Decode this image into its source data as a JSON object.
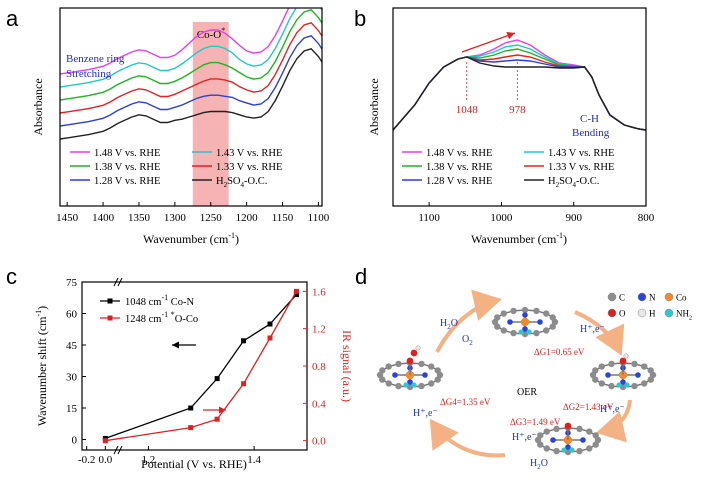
{
  "panel_labels": {
    "a": "a",
    "b": "b",
    "c": "c",
    "d": "d"
  },
  "chart_data": [
    {
      "type": "line",
      "panel": "a",
      "xlabel": "Wavenumber (cm",
      "xlabel_sup": "-1",
      "xlabel_tail": ")",
      "ylabel": "Absorbance",
      "xlim": [
        1460,
        1095
      ],
      "xticks": [
        "1450",
        "1400",
        "1350",
        "1300",
        "1250",
        "1200",
        "1150",
        "1100"
      ],
      "highlight": {
        "from": 1275,
        "to": 1225,
        "label": "Co-O",
        "label_sup": "*",
        "color": "#f4a6a6"
      },
      "annotation": {
        "line1": "Benzene ring",
        "line2": "Stretching",
        "color": "#1f2fbf"
      },
      "legend": [
        {
          "name": "1.48 V vs. RHE",
          "color": "#e83fe8"
        },
        {
          "name": "1.43 V vs. RHE",
          "color": "#21c8c8"
        },
        {
          "name": "1.38 V vs. RHE",
          "color": "#1fb51f"
        },
        {
          "name": "1.33 V vs. RHE",
          "color": "#e82020"
        },
        {
          "name": "1.28 V vs. RHE",
          "color": "#2e3fd6"
        },
        {
          "name": "H2SO4-O.C.",
          "color": "#222222"
        }
      ],
      "legend_h2so4": {
        "a": "H",
        "sub1": "2",
        "b": "SO",
        "sub2": "4",
        "c": "-O.C."
      },
      "series": [
        {
          "name": "1.48 V vs. RHE",
          "offset": 5,
          "x": [
            1460,
            1450,
            1440,
            1420,
            1400,
            1390,
            1380,
            1370,
            1360,
            1350,
            1340,
            1330,
            1320,
            1310,
            1300,
            1290,
            1280,
            1270,
            1260,
            1250,
            1240,
            1230,
            1220,
            1210,
            1200,
            1190,
            1180,
            1170,
            1160,
            1150,
            1140,
            1130,
            1120,
            1110,
            1100,
            1095
          ],
          "y": [
            0.1,
            0.11,
            0.12,
            0.14,
            0.17,
            0.2,
            0.24,
            0.27,
            0.3,
            0.32,
            0.31,
            0.28,
            0.25,
            0.25,
            0.27,
            0.32,
            0.38,
            0.44,
            0.48,
            0.5,
            0.5,
            0.47,
            0.42,
            0.36,
            0.31,
            0.29,
            0.3,
            0.35,
            0.45,
            0.58,
            0.72,
            0.83,
            0.9,
            0.92,
            0.85,
            0.8
          ]
        },
        {
          "name": "1.43 V vs. RHE",
          "offset": 4,
          "x": [
            1460,
            1450,
            1440,
            1420,
            1400,
            1390,
            1380,
            1370,
            1360,
            1350,
            1340,
            1330,
            1320,
            1310,
            1300,
            1290,
            1280,
            1270,
            1260,
            1250,
            1240,
            1230,
            1220,
            1210,
            1200,
            1190,
            1180,
            1170,
            1160,
            1150,
            1140,
            1130,
            1120,
            1110,
            1100,
            1095
          ],
          "y": [
            0.1,
            0.11,
            0.12,
            0.14,
            0.17,
            0.2,
            0.24,
            0.27,
            0.3,
            0.32,
            0.31,
            0.28,
            0.25,
            0.25,
            0.27,
            0.31,
            0.36,
            0.41,
            0.45,
            0.47,
            0.47,
            0.45,
            0.41,
            0.35,
            0.31,
            0.29,
            0.3,
            0.35,
            0.45,
            0.58,
            0.72,
            0.83,
            0.9,
            0.92,
            0.85,
            0.8
          ]
        },
        {
          "name": "1.38 V vs. RHE",
          "offset": 3,
          "x": [
            1460,
            1450,
            1440,
            1420,
            1400,
            1390,
            1380,
            1370,
            1360,
            1350,
            1340,
            1330,
            1320,
            1310,
            1300,
            1290,
            1280,
            1270,
            1260,
            1250,
            1240,
            1230,
            1220,
            1210,
            1200,
            1190,
            1180,
            1170,
            1160,
            1150,
            1140,
            1130,
            1120,
            1110,
            1100,
            1095
          ],
          "y": [
            0.1,
            0.11,
            0.12,
            0.14,
            0.17,
            0.2,
            0.24,
            0.27,
            0.3,
            0.32,
            0.31,
            0.28,
            0.25,
            0.25,
            0.27,
            0.3,
            0.34,
            0.38,
            0.42,
            0.44,
            0.44,
            0.42,
            0.39,
            0.35,
            0.31,
            0.29,
            0.3,
            0.35,
            0.45,
            0.58,
            0.72,
            0.83,
            0.9,
            0.92,
            0.85,
            0.8
          ]
        },
        {
          "name": "1.33 V vs. RHE",
          "offset": 2,
          "x": [
            1460,
            1450,
            1440,
            1420,
            1400,
            1390,
            1380,
            1370,
            1360,
            1350,
            1340,
            1330,
            1320,
            1310,
            1300,
            1290,
            1280,
            1270,
            1260,
            1250,
            1240,
            1230,
            1220,
            1210,
            1200,
            1190,
            1180,
            1170,
            1160,
            1150,
            1140,
            1130,
            1120,
            1110,
            1100,
            1095
          ],
          "y": [
            0.1,
            0.11,
            0.12,
            0.14,
            0.17,
            0.2,
            0.24,
            0.27,
            0.3,
            0.32,
            0.31,
            0.28,
            0.25,
            0.25,
            0.27,
            0.3,
            0.33,
            0.36,
            0.39,
            0.41,
            0.41,
            0.4,
            0.38,
            0.34,
            0.31,
            0.29,
            0.3,
            0.35,
            0.45,
            0.58,
            0.72,
            0.83,
            0.9,
            0.92,
            0.85,
            0.8
          ]
        },
        {
          "name": "1.28 V vs. RHE",
          "offset": 1,
          "x": [
            1460,
            1450,
            1440,
            1420,
            1400,
            1390,
            1380,
            1370,
            1360,
            1350,
            1340,
            1330,
            1320,
            1310,
            1300,
            1290,
            1280,
            1270,
            1260,
            1250,
            1240,
            1230,
            1220,
            1210,
            1200,
            1190,
            1180,
            1170,
            1160,
            1150,
            1140,
            1130,
            1120,
            1110,
            1100,
            1095
          ],
          "y": [
            0.1,
            0.11,
            0.12,
            0.14,
            0.17,
            0.2,
            0.24,
            0.27,
            0.3,
            0.32,
            0.31,
            0.28,
            0.25,
            0.25,
            0.27,
            0.29,
            0.32,
            0.35,
            0.37,
            0.38,
            0.38,
            0.37,
            0.36,
            0.33,
            0.31,
            0.29,
            0.3,
            0.35,
            0.45,
            0.58,
            0.72,
            0.83,
            0.9,
            0.92,
            0.85,
            0.8
          ]
        },
        {
          "name": "H2SO4-O.C.",
          "offset": 0,
          "x": [
            1460,
            1450,
            1440,
            1420,
            1400,
            1390,
            1380,
            1370,
            1360,
            1350,
            1340,
            1330,
            1320,
            1310,
            1300,
            1290,
            1280,
            1270,
            1260,
            1250,
            1240,
            1230,
            1220,
            1210,
            1200,
            1190,
            1180,
            1170,
            1160,
            1150,
            1140,
            1130,
            1120,
            1110,
            1100,
            1095
          ],
          "y": [
            0.1,
            0.11,
            0.12,
            0.14,
            0.17,
            0.2,
            0.24,
            0.27,
            0.3,
            0.32,
            0.31,
            0.28,
            0.25,
            0.25,
            0.27,
            0.28,
            0.3,
            0.32,
            0.34,
            0.35,
            0.35,
            0.35,
            0.34,
            0.32,
            0.3,
            0.29,
            0.3,
            0.35,
            0.45,
            0.58,
            0.72,
            0.83,
            0.9,
            0.92,
            0.85,
            0.8
          ]
        }
      ]
    },
    {
      "type": "line",
      "panel": "b",
      "xlabel": "Wavenumber (cm",
      "xlabel_sup": "-1",
      "xlabel_tail": ")",
      "ylabel": "Absorbance",
      "xlim": [
        1150,
        800
      ],
      "xticks": [
        "1100",
        "1000",
        "900",
        "800"
      ],
      "peak_labels": [
        {
          "text": "1048",
          "x": 1048
        },
        {
          "text": "978",
          "x": 978
        }
      ],
      "peak_label_color": "#e02020",
      "ch_label": {
        "line1": "C-H",
        "line2": "Bending",
        "color": "#1f2fbf"
      },
      "legend": [
        {
          "name": "1.48 V vs. RHE",
          "color": "#e83fe8"
        },
        {
          "name": "1.43 V vs. RHE",
          "color": "#21c8c8"
        },
        {
          "name": "1.38 V vs. RHE",
          "color": "#1fb51f"
        },
        {
          "name": "1.33 V vs. RHE",
          "color": "#e82020"
        },
        {
          "name": "1.28 V vs. RHE",
          "color": "#2e3fd6"
        },
        {
          "name": "H2SO4-O.C.",
          "color": "#222222"
        }
      ],
      "legend_h2so4": {
        "a": "H",
        "sub1": "2",
        "b": "SO",
        "sub2": "4",
        "c": "-O.C."
      },
      "series": [
        {
          "name": "1.48 V vs. RHE",
          "x": [
            1150,
            1120,
            1100,
            1080,
            1060,
            1048,
            1030,
            1010,
            995,
            978,
            960,
            940,
            920,
            900,
            885,
            875,
            865,
            850,
            830,
            810,
            800
          ],
          "y": [
            0.05,
            0.3,
            0.52,
            0.68,
            0.76,
            0.78,
            0.8,
            0.86,
            0.92,
            0.95,
            0.9,
            0.8,
            0.72,
            0.7,
            0.68,
            0.58,
            0.4,
            0.2,
            0.1,
            0.06,
            0.05
          ]
        },
        {
          "name": "1.43 V vs. RHE",
          "x": [
            1150,
            1120,
            1100,
            1080,
            1060,
            1048,
            1030,
            1010,
            995,
            978,
            960,
            940,
            920,
            900,
            885,
            875,
            865,
            850,
            830,
            810,
            800
          ],
          "y": [
            0.05,
            0.3,
            0.52,
            0.68,
            0.76,
            0.78,
            0.79,
            0.83,
            0.88,
            0.9,
            0.86,
            0.78,
            0.71,
            0.69,
            0.68,
            0.58,
            0.4,
            0.2,
            0.1,
            0.06,
            0.05
          ]
        },
        {
          "name": "1.38 V vs. RHE",
          "x": [
            1150,
            1120,
            1100,
            1080,
            1060,
            1048,
            1030,
            1010,
            995,
            978,
            960,
            940,
            920,
            900,
            885,
            875,
            865,
            850,
            830,
            810,
            800
          ],
          "y": [
            0.05,
            0.3,
            0.52,
            0.68,
            0.76,
            0.78,
            0.77,
            0.8,
            0.84,
            0.86,
            0.82,
            0.76,
            0.7,
            0.69,
            0.68,
            0.58,
            0.4,
            0.2,
            0.1,
            0.06,
            0.05
          ]
        },
        {
          "name": "1.33 V vs. RHE",
          "x": [
            1150,
            1120,
            1100,
            1080,
            1060,
            1048,
            1030,
            1010,
            995,
            978,
            960,
            940,
            920,
            900,
            885,
            875,
            865,
            850,
            830,
            810,
            800
          ],
          "y": [
            0.05,
            0.3,
            0.52,
            0.68,
            0.76,
            0.78,
            0.75,
            0.76,
            0.78,
            0.8,
            0.78,
            0.73,
            0.69,
            0.68,
            0.68,
            0.58,
            0.4,
            0.2,
            0.1,
            0.06,
            0.05
          ]
        },
        {
          "name": "1.28 V vs. RHE",
          "x": [
            1150,
            1120,
            1100,
            1080,
            1060,
            1048,
            1030,
            1010,
            995,
            978,
            960,
            940,
            920,
            900,
            885,
            875,
            865,
            850,
            830,
            810,
            800
          ],
          "y": [
            0.05,
            0.3,
            0.52,
            0.68,
            0.76,
            0.78,
            0.74,
            0.73,
            0.74,
            0.75,
            0.74,
            0.71,
            0.68,
            0.68,
            0.68,
            0.58,
            0.4,
            0.2,
            0.1,
            0.06,
            0.05
          ]
        },
        {
          "name": "H2SO4-O.C.",
          "x": [
            1150,
            1120,
            1100,
            1080,
            1060,
            1048,
            1030,
            1010,
            995,
            978,
            960,
            940,
            920,
            900,
            885,
            875,
            865,
            850,
            830,
            810,
            800
          ],
          "y": [
            0.05,
            0.3,
            0.52,
            0.68,
            0.76,
            0.78,
            0.72,
            0.69,
            0.68,
            0.68,
            0.68,
            0.68,
            0.67,
            0.67,
            0.68,
            0.58,
            0.4,
            0.2,
            0.1,
            0.06,
            0.05
          ]
        }
      ]
    },
    {
      "type": "line",
      "panel": "c",
      "xlabel": "Potential (V vs. RHE)",
      "ylabel_left": "Wavenumber shift (cm",
      "ylabel_left_sup": "-1",
      "ylabel_left_tail": ")",
      "ylabel_right": "IR signal (a.u.)",
      "xlim": [
        -0.25,
        1.5
      ],
      "xticks": [
        "-0.2",
        "0.0",
        "1.2",
        "1.4"
      ],
      "ylim_left": [
        -5,
        75
      ],
      "yticks_left": [
        "0",
        "15",
        "30",
        "45",
        "60",
        "75"
      ],
      "ylim_right": [
        -0.1,
        1.7
      ],
      "yticks_right": [
        "0.0",
        "0.4",
        "0.8",
        "1.2",
        "1.6"
      ],
      "series": [
        {
          "name": "1048 cm-1 Co-N",
          "legend_a": "1048 cm",
          "legend_sup": "-1",
          "legend_b": " Co-N",
          "color": "#000000",
          "axis": "left",
          "x": [
            0.0,
            1.28,
            1.33,
            1.38,
            1.43,
            1.48
          ],
          "y": [
            0.5,
            15,
            29,
            47,
            55,
            69
          ]
        },
        {
          "name": "1248 cm-1 *O-Co",
          "legend_a": "1248 cm",
          "legend_sup": "-1",
          "legend_b": " ",
          "legend_sup2": "*",
          "legend_c": "O-Co",
          "color": "#e02020",
          "axis": "right",
          "x": [
            0.0,
            1.28,
            1.33,
            1.38,
            1.43,
            1.48
          ],
          "y": [
            0.0,
            0.14,
            0.23,
            0.61,
            1.1,
            1.6
          ]
        }
      ]
    }
  ],
  "panel_d": {
    "legend": [
      {
        "symbol": "C",
        "color": "#8c8c8c"
      },
      {
        "symbol": "N",
        "color": "#2845d8"
      },
      {
        "symbol": "Co",
        "color": "#f08a2a"
      },
      {
        "symbol": "O",
        "color": "#e02020"
      },
      {
        "symbol": "H",
        "color": "#e8e8e8"
      },
      {
        "symbol": "NH2",
        "color": "#2ec8d0"
      }
    ],
    "center_label": "OER",
    "steps": [
      {
        "energy": "ΔG1=0.65 eV",
        "color": "#e02020"
      },
      {
        "energy": "ΔG2=1.43 eV",
        "color": "#e02020"
      },
      {
        "energy": "ΔG3=1.49 eV",
        "color": "#e02020"
      },
      {
        "energy": "ΔG4=1.35 eV",
        "color": "#e02020"
      }
    ],
    "species": {
      "h2o": "H2O",
      "o2": "O2",
      "hplus_e": "H⁺,e⁻"
    }
  }
}
